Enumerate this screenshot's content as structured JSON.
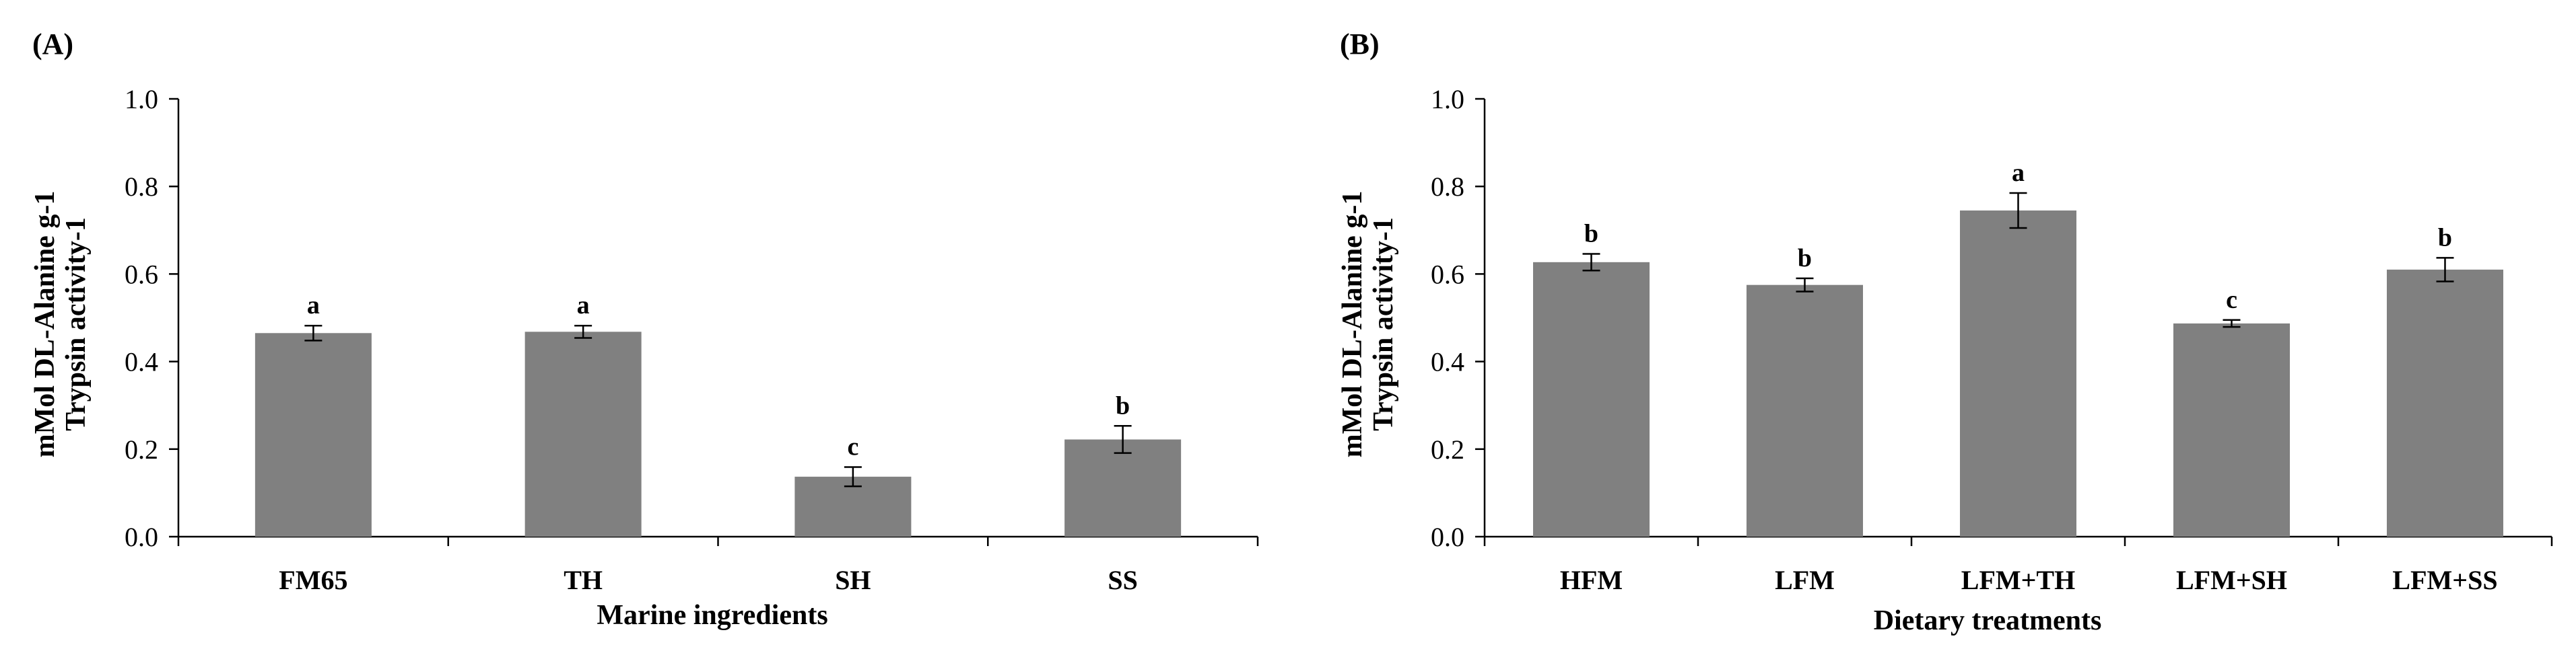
{
  "chart_data": [
    {
      "type": "bar",
      "panel_label": "(A)",
      "title": "",
      "xlabel": "Marine ingredients",
      "ylabel": [
        "mMol DL-Alanine g-1",
        "Trypsin activity-1"
      ],
      "ylim": [
        0,
        1.0
      ],
      "yticks": [
        "0.0",
        "0.2",
        "0.4",
        "0.6",
        "0.8",
        "1.0"
      ],
      "grid": false,
      "bar_color": "#808080",
      "categories": [
        "FM65",
        "TH",
        "SH",
        "SS"
      ],
      "values": [
        0.465,
        0.468,
        0.137,
        0.222
      ],
      "errors": [
        0.017,
        0.014,
        0.022,
        0.031
      ],
      "significance": [
        "a",
        "a",
        "c",
        "b"
      ]
    },
    {
      "type": "bar",
      "panel_label": "(B)",
      "title": "",
      "xlabel": "Dietary treatments",
      "ylabel": [
        "mMol DL-Alanine g-1",
        "Trypsin activity-1"
      ],
      "ylim": [
        0,
        1.0
      ],
      "yticks": [
        "0.0",
        "0.2",
        "0.4",
        "0.6",
        "0.8",
        "1.0"
      ],
      "grid": false,
      "bar_color": "#808080",
      "categories": [
        "HFM",
        "LFM",
        "LFM+TH",
        "LFM+SH",
        "LFM+SS"
      ],
      "values": [
        0.627,
        0.575,
        0.745,
        0.487,
        0.61
      ],
      "errors": [
        0.019,
        0.015,
        0.04,
        0.008,
        0.027
      ],
      "significance": [
        "b",
        "b",
        "a",
        "c",
        "b"
      ]
    }
  ]
}
